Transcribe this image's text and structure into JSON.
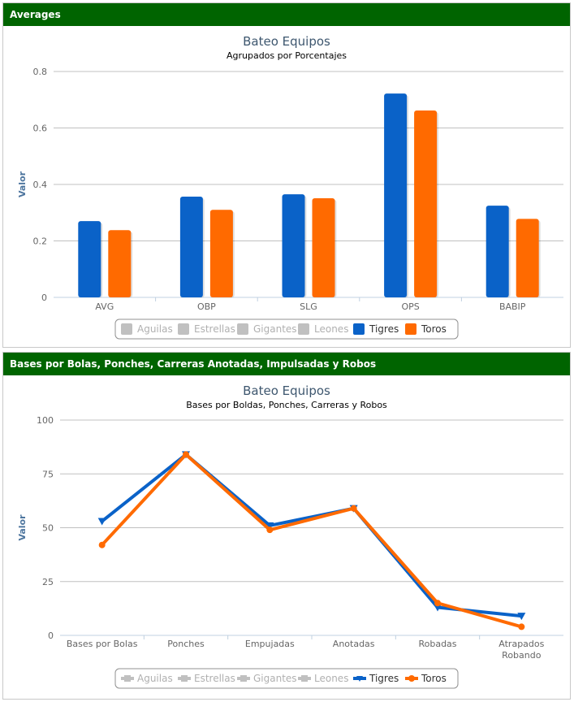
{
  "panel1": {
    "header": "Averages"
  },
  "panel2": {
    "header": "Bases por Bolas, Ponches, Carreras Anotadas, Impulsadas y Robos"
  },
  "colors": {
    "Tigres": "#0a62c8",
    "Toros": "#ff6a00",
    "inactive": "#c0c0c0",
    "header_bg": "#006400",
    "title": "#3e576f",
    "axis_label": "#4d759e"
  },
  "legend": [
    {
      "name": "Aguilas",
      "active": false
    },
    {
      "name": "Estrellas",
      "active": false
    },
    {
      "name": "Gigantes",
      "active": false
    },
    {
      "name": "Leones",
      "active": false
    },
    {
      "name": "Tigres",
      "active": true
    },
    {
      "name": "Toros",
      "active": true
    }
  ],
  "chart_data": [
    {
      "type": "bar",
      "title": "Bateo Equipos",
      "subtitle": "Agrupados por Porcentajes",
      "xlabel": "",
      "ylabel": "Valor",
      "ylim": [
        0,
        0.8
      ],
      "yticks": [
        "0",
        "0.2",
        "0.4",
        "0.6",
        "0.8"
      ],
      "categories": [
        "AVG",
        "OBP",
        "SLG",
        "OPS",
        "BABIP"
      ],
      "series": [
        {
          "name": "Tigres",
          "values": [
            0.27,
            0.357,
            0.365,
            0.722,
            0.325
          ]
        },
        {
          "name": "Toros",
          "values": [
            0.238,
            0.31,
            0.351,
            0.662,
            0.278
          ]
        }
      ],
      "grid": true,
      "legend_position": "bottom"
    },
    {
      "type": "line",
      "title": "Bateo Equipos",
      "subtitle": "Bases por Boldas, Ponches, Carreras y Robos",
      "xlabel": "",
      "ylabel": "Valor",
      "ylim": [
        0,
        100
      ],
      "yticks": [
        "0",
        "25",
        "50",
        "75",
        "100"
      ],
      "categories": [
        "Bases por Bolas",
        "Ponches",
        "Empujadas",
        "Anotadas",
        "Robadas",
        "Atrapados Robando"
      ],
      "series": [
        {
          "name": "Tigres",
          "values": [
            53,
            84,
            51,
            59,
            13,
            9
          ]
        },
        {
          "name": "Toros",
          "values": [
            42,
            84,
            49,
            59,
            15,
            4
          ]
        }
      ],
      "grid": true,
      "legend_position": "bottom"
    }
  ]
}
